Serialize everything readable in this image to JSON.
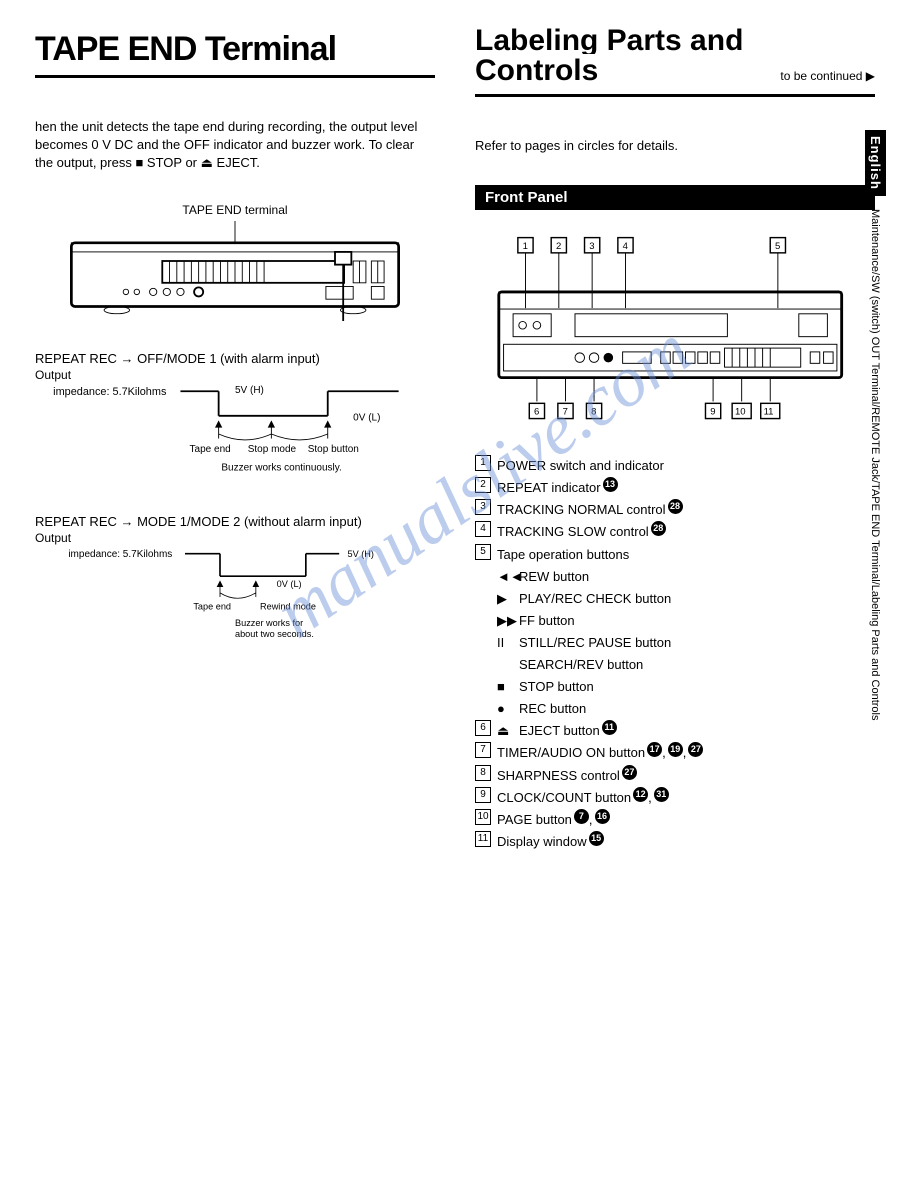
{
  "left": {
    "heading": "TAPE END Terminal",
    "intro": "hen the unit detects the tape end during recording, the output level becomes 0 V DC and the OFF indicator and buzzer work. To clear the output, press ■ STOP or ⏏ EJECT.",
    "rear_label": "TAPE END terminal",
    "mode1": {
      "title": "REPEAT REC → OFF/MODE 1 (with alarm input)",
      "output": "Output",
      "impedance": "impedance: 5.7Kilohms",
      "hi": "5V (H)",
      "lo": "0V (L)",
      "tapeend": "Tape end",
      "stopmode": "Stop mode",
      "stopbtn": "Stop button",
      "buzzer": "Buzzer works continuously."
    },
    "mode2": {
      "title": "REPEAT REC → MODE 1/MODE 2 (without alarm input)",
      "output": "Output",
      "impedance": "impedance: 5.7Kilohms",
      "hi": "5V (H)",
      "lo": "0V (L)",
      "tapeend": "Tape end",
      "rewind": "Rewind mode",
      "buzzer1": "Buzzer works for",
      "buzzer2": "about two seconds."
    }
  },
  "right": {
    "heading_top": "Labeling Parts and",
    "heading_sub": "Controls",
    "continued": "to be continued ▶",
    "refer": "Refer to pages in circles for details.",
    "panel_heading": "Front Panel",
    "callouts_top": [
      "1",
      "2",
      "3",
      "4",
      "5"
    ],
    "callouts_bottom": [
      "6",
      "7",
      "8",
      "9",
      "10",
      "11"
    ],
    "controls": [
      {
        "n": "1",
        "t": "POWER switch and indicator",
        "refs": []
      },
      {
        "n": "2",
        "t": "REPEAT indicator",
        "refs": [
          "13"
        ]
      },
      {
        "n": "3",
        "t": "TRACKING NORMAL control",
        "refs": [
          "28"
        ]
      },
      {
        "n": "4",
        "t": "TRACKING SLOW control",
        "refs": [
          "28"
        ]
      },
      {
        "n": "5",
        "t": "Tape operation buttons",
        "refs": []
      },
      {
        "sub": true,
        "sym": "◄◄",
        "t": "REW button"
      },
      {
        "sub": true,
        "sym": "▶",
        "t": "PLAY/REC CHECK button"
      },
      {
        "sub": true,
        "sym": "▶▶",
        "t": "FF button"
      },
      {
        "sub": true,
        "sym": "II",
        "t": "STILL/REC PAUSE button"
      },
      {
        "sub": true,
        "sym": "",
        "t": "SEARCH/REV button"
      },
      {
        "sub": true,
        "sym": "■",
        "t": "STOP button"
      },
      {
        "sub": true,
        "sym": "●",
        "t": "REC button"
      },
      {
        "n": "6",
        "sym": "⏏",
        "t": "EJECT button",
        "refs": [
          "11"
        ]
      },
      {
        "n": "7",
        "t": "TIMER/AUDIO ON button",
        "refs": [
          "17",
          "19",
          "27"
        ]
      },
      {
        "n": "8",
        "t": "SHARPNESS control",
        "refs": [
          "27"
        ]
      },
      {
        "n": "9",
        "t": "CLOCK/COUNT button",
        "refs": [
          "12",
          "31"
        ]
      },
      {
        "n": "10",
        "t": "PAGE button",
        "refs": [
          "7",
          "16"
        ]
      },
      {
        "n": "11",
        "t": "Display window",
        "refs": [
          "15"
        ]
      }
    ]
  },
  "side": {
    "lang": "English",
    "trail": "Maintenance/SW (switch) OUT Terminal/REMOTE Jack/TAPE END Terminal/Labeling Parts and Controls"
  },
  "watermark": "manualslive.com"
}
